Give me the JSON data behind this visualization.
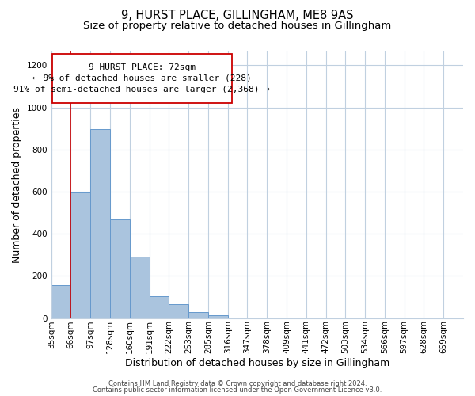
{
  "title_line1": "9, HURST PLACE, GILLINGHAM, ME8 9AS",
  "title_line2": "Size of property relative to detached houses in Gillingham",
  "xlabel": "Distribution of detached houses by size in Gillingham",
  "ylabel": "Number of detached properties",
  "bar_values": [
    155,
    595,
    895,
    470,
    290,
    105,
    65,
    28,
    15,
    0,
    0,
    0,
    0,
    0,
    0,
    0,
    0,
    0,
    0,
    0,
    0
  ],
  "bin_labels": [
    "35sqm",
    "66sqm",
    "97sqm",
    "128sqm",
    "160sqm",
    "191sqm",
    "222sqm",
    "253sqm",
    "285sqm",
    "316sqm",
    "347sqm",
    "378sqm",
    "409sqm",
    "441sqm",
    "472sqm",
    "503sqm",
    "534sqm",
    "566sqm",
    "597sqm",
    "628sqm",
    "659sqm"
  ],
  "bar_color": "#aac4de",
  "bar_edge_color": "#6699cc",
  "vline_x": 1,
  "vline_color": "#cc0000",
  "annotation_line1": "9 HURST PLACE: 72sqm",
  "annotation_line2": "← 9% of detached houses are smaller (228)",
  "annotation_line3": "91% of semi-detached houses are larger (2,368) →",
  "ylim": [
    0,
    1265
  ],
  "yticks": [
    0,
    200,
    400,
    600,
    800,
    1000,
    1200
  ],
  "background_color": "#ffffff",
  "grid_color": "#c0d0e0",
  "footer_line1": "Contains HM Land Registry data © Crown copyright and database right 2024.",
  "footer_line2": "Contains public sector information licensed under the Open Government Licence v3.0.",
  "title_fontsize": 10.5,
  "subtitle_fontsize": 9.5,
  "axis_label_fontsize": 9,
  "tick_fontsize": 7.5,
  "annotation_fontsize": 8,
  "footer_fontsize": 6
}
